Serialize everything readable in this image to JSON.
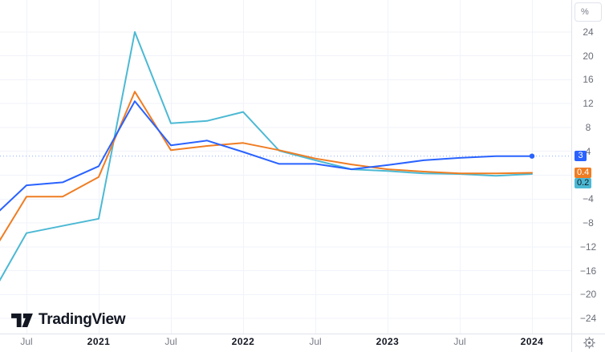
{
  "header": {
    "unit_button": "%"
  },
  "watermark": {
    "brand": "TradingView"
  },
  "price_scale": {
    "unit": "%",
    "ticks": [
      {
        "label": "24",
        "value": 24
      },
      {
        "label": "20",
        "value": 20
      },
      {
        "label": "16",
        "value": 16
      },
      {
        "label": "12",
        "value": 12
      },
      {
        "label": "8",
        "value": 8
      },
      {
        "label": "4",
        "value": 4
      },
      {
        "label": "−4",
        "value": -4
      },
      {
        "label": "−8",
        "value": -8
      },
      {
        "label": "−12",
        "value": -12
      },
      {
        "label": "−16",
        "value": -16
      },
      {
        "label": "−20",
        "value": -20
      },
      {
        "label": "−24",
        "value": -24
      }
    ],
    "price_labels": [
      {
        "series": "blue-line",
        "label": "3",
        "bg": "#2962ff",
        "fg": "#ffffff"
      },
      {
        "series": "orange-line",
        "label": "0.4",
        "bg": "#ef7d23",
        "fg": "#ffffff"
      },
      {
        "series": "cyan-line",
        "label": "0.2",
        "bg": "#4cb9d4",
        "fg": "#131722"
      }
    ]
  },
  "time_scale": {
    "ticks": [
      {
        "label": "Jul",
        "index": 1,
        "year": false
      },
      {
        "label": "2021",
        "index": 3,
        "year": true
      },
      {
        "label": "Jul",
        "index": 5,
        "year": false
      },
      {
        "label": "2022",
        "index": 7,
        "year": true
      },
      {
        "label": "Jul",
        "index": 9,
        "year": false
      },
      {
        "label": "2023",
        "index": 11,
        "year": true
      },
      {
        "label": "Jul",
        "index": 13,
        "year": false
      },
      {
        "label": "2024",
        "index": 15,
        "year": true
      }
    ]
  },
  "icons": {
    "settings_gear": "price-scale-settings",
    "logo_mark": "tradingview-mark"
  },
  "colors": {
    "blue": "#2962ff",
    "orange": "#ef7d23",
    "cyan": "#4cb9d4",
    "grid": "#f0f3fa",
    "border": "#e0e3eb",
    "axis_text": "#6a6d78",
    "dark_text": "#131722"
  },
  "chart_data": {
    "type": "line",
    "title": "",
    "ylabel": "%",
    "ylim": [
      -26,
      27
    ],
    "grid": true,
    "legend_position": "none",
    "x": [
      "Apr 2020",
      "Jul 2020",
      "Oct 2020",
      "Jan 2021",
      "Apr 2021",
      "Jul 2021",
      "Oct 2021",
      "Jan 2022",
      "Apr 2022",
      "Jul 2022",
      "Oct 2022",
      "Jan 2023",
      "Apr 2023",
      "Jul 2023",
      "Oct 2023",
      "Jan 2024"
    ],
    "x_tick_labels": [
      "Jul",
      "2021",
      "Jul",
      "2022",
      "Jul",
      "2023",
      "Jul",
      "2024"
    ],
    "y_tick_labels": [
      24,
      20,
      16,
      12,
      8,
      4,
      -4,
      -8,
      -12,
      -16,
      -20,
      -24
    ],
    "series": [
      {
        "name": "blue-line",
        "color": "#2962ff",
        "last_label": "3",
        "values": [
          -7.4,
          -1.7,
          -1.2,
          1.5,
          12.4,
          5.0,
          5.8,
          3.9,
          1.9,
          1.9,
          1.0,
          1.7,
          2.5,
          2.9,
          3.2,
          3.2
        ]
      },
      {
        "name": "orange-line",
        "color": "#ef7d23",
        "last_label": "0.4",
        "values": [
          -13.5,
          -3.6,
          -3.6,
          -0.3,
          14.0,
          4.2,
          4.9,
          5.4,
          4.2,
          2.8,
          1.8,
          1.0,
          0.6,
          0.3,
          0.3,
          0.4
        ]
      },
      {
        "name": "cyan-line",
        "color": "#4cb9d4",
        "last_label": "0.2",
        "values": [
          -20.4,
          -9.7,
          -8.5,
          -7.3,
          24.0,
          8.7,
          9.1,
          10.6,
          4.1,
          2.5,
          1.0,
          0.7,
          0.3,
          0.2,
          -0.1,
          0.2
        ]
      }
    ],
    "price_line": {
      "series": "blue-line",
      "style": "dotted",
      "marker": "dot-on-last-point"
    }
  }
}
